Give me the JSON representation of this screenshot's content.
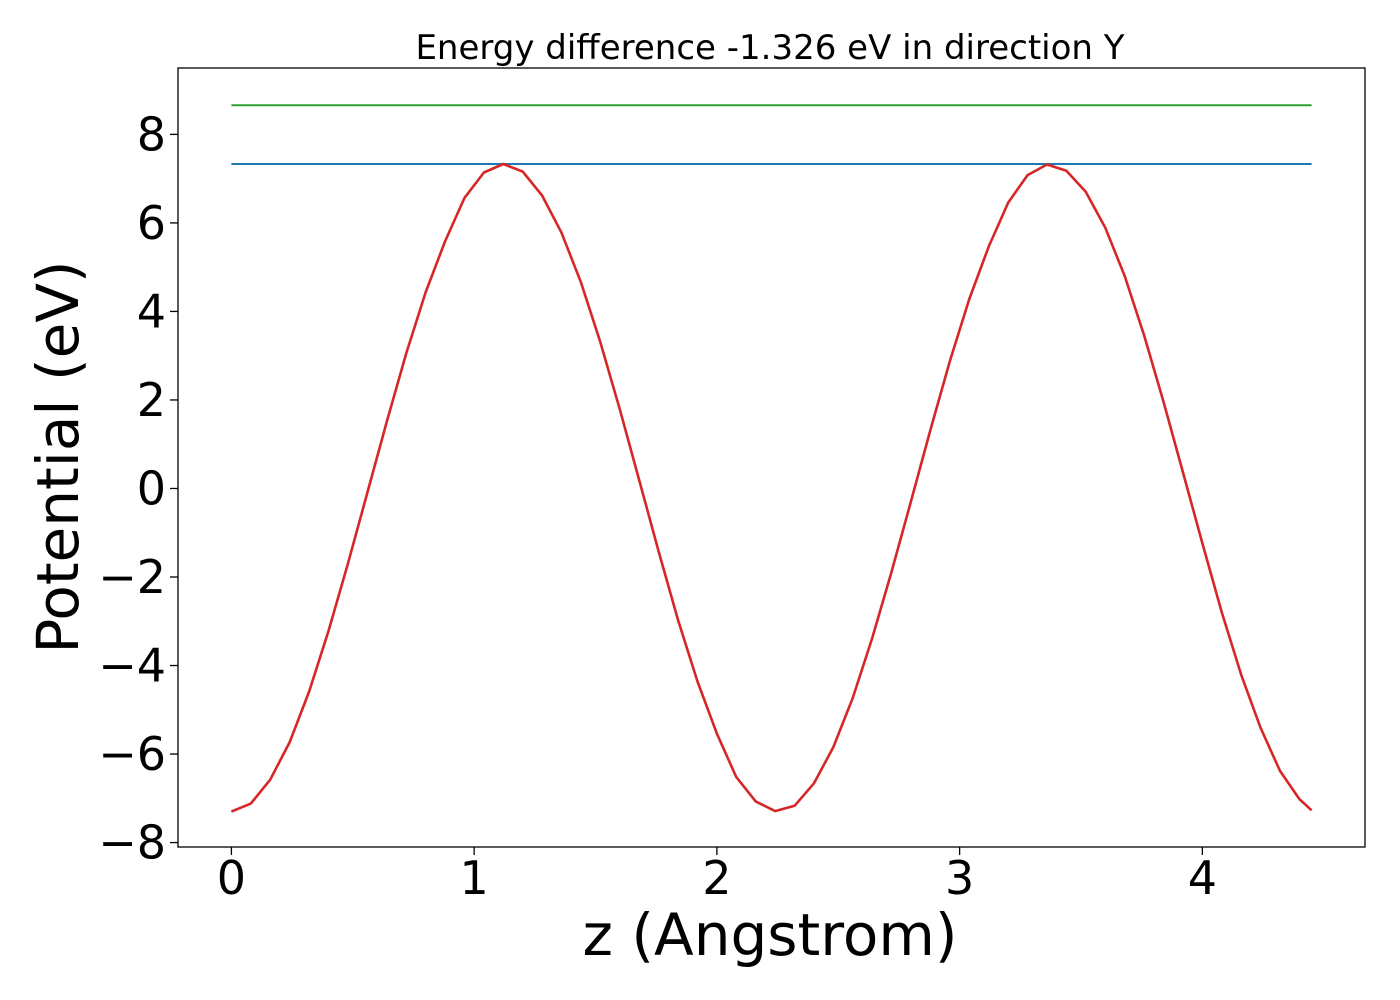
{
  "chart_data": {
    "type": "line",
    "title": "Energy difference -1.326 eV in direction Y",
    "xlabel": "z (Angstrom)",
    "ylabel": "Potential (eV)",
    "xlim": [
      -0.22,
      4.67
    ],
    "ylim": [
      -8.1,
      9.5
    ],
    "xticks": [
      0,
      1,
      2,
      3,
      4
    ],
    "xtick_labels": [
      "0",
      "1",
      "2",
      "3",
      "4"
    ],
    "yticks": [
      -8,
      -6,
      -4,
      -2,
      0,
      2,
      4,
      6,
      8
    ],
    "ytick_labels": [
      "−8",
      "−6",
      "−4",
      "−2",
      "0",
      "2",
      "4",
      "6",
      "8"
    ],
    "grid": false,
    "legend": false,
    "series": [
      {
        "color": "#2ca02c",
        "x": [
          0,
          4.45
        ],
        "y": [
          8.66,
          8.66
        ]
      },
      {
        "color": "#1f77b4",
        "x": [
          0,
          4.45
        ],
        "y": [
          7.33,
          7.33
        ]
      },
      {
        "color": "#d62728",
        "x": [
          0,
          0.08,
          0.16,
          0.24,
          0.32,
          0.4,
          0.48,
          0.56,
          0.64,
          0.72,
          0.8,
          0.88,
          0.96,
          1.04,
          1.12,
          1.2,
          1.28,
          1.36,
          1.44,
          1.52,
          1.6,
          1.68,
          1.76,
          1.84,
          1.92,
          2.0,
          2.08,
          2.16,
          2.24,
          2.32,
          2.4,
          2.48,
          2.56,
          2.64,
          2.72,
          2.8,
          2.88,
          2.96,
          3.04,
          3.12,
          3.2,
          3.28,
          3.36,
          3.44,
          3.52,
          3.6,
          3.68,
          3.76,
          3.84,
          3.92,
          4.0,
          4.08,
          4.16,
          4.24,
          4.32,
          4.4,
          4.45
        ],
        "y": [
          -7.3,
          -7.12,
          -6.58,
          -5.73,
          -4.59,
          -3.22,
          -1.7,
          -0.1,
          1.51,
          3.05,
          4.43,
          5.58,
          6.56,
          7.14,
          7.33,
          7.16,
          6.62,
          5.78,
          4.66,
          3.3,
          1.79,
          0.19,
          -1.42,
          -2.97,
          -4.36,
          -5.54,
          -6.52,
          -7.07,
          -7.29,
          -7.17,
          -6.66,
          -5.84,
          -4.73,
          -3.38,
          -1.87,
          -0.28,
          1.33,
          2.88,
          4.28,
          5.47,
          6.46,
          7.08,
          7.32,
          7.18,
          6.7,
          5.89,
          4.8,
          3.46,
          1.96,
          0.37,
          -1.24,
          -2.8,
          -4.21,
          -5.41,
          -6.38,
          -7.02,
          -7.27
        ]
      }
    ]
  }
}
